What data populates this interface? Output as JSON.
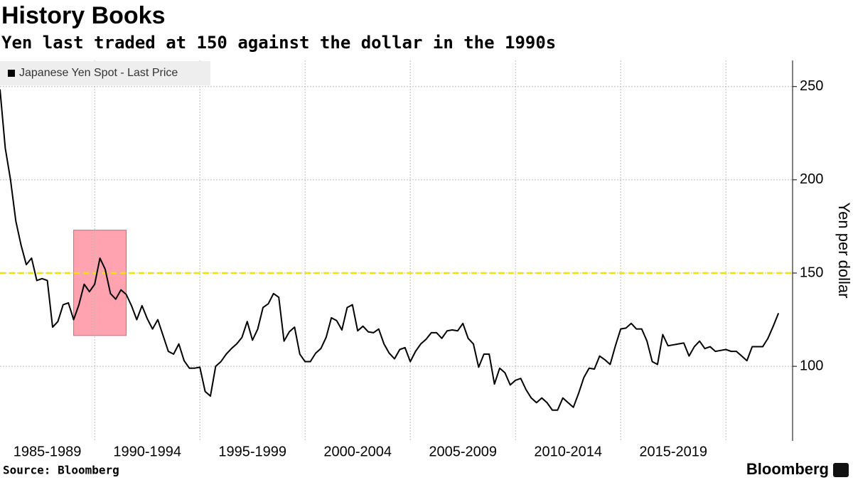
{
  "chart_data": {
    "type": "line",
    "title": "History Books",
    "subtitle": "Yen last traded at 150 against the dollar in the 1990s",
    "y_label": "Yen per dollar",
    "source": "Source: Bloomberg",
    "brand": "Bloomberg",
    "x": [
      1985.5,
      1985.75,
      1986,
      1986.25,
      1986.5,
      1986.75,
      1987,
      1987.25,
      1987.5,
      1987.75,
      1988,
      1988.25,
      1988.5,
      1988.75,
      1989,
      1989.25,
      1989.5,
      1989.75,
      1990,
      1990.25,
      1990.5,
      1990.75,
      1991,
      1991.25,
      1991.5,
      1991.75,
      1992,
      1992.25,
      1992.5,
      1992.75,
      1993,
      1993.25,
      1993.5,
      1993.75,
      1994,
      1994.25,
      1994.5,
      1994.75,
      1995,
      1995.25,
      1995.5,
      1995.75,
      1996,
      1996.25,
      1996.5,
      1996.75,
      1997,
      1997.25,
      1997.5,
      1997.75,
      1998,
      1998.25,
      1998.5,
      1998.75,
      1999,
      1999.25,
      1999.5,
      1999.75,
      2000,
      2000.25,
      2000.5,
      2000.75,
      2001,
      2001.25,
      2001.5,
      2001.75,
      2002,
      2002.25,
      2002.5,
      2002.75,
      2003,
      2003.25,
      2003.5,
      2003.75,
      2004,
      2004.25,
      2004.5,
      2004.75,
      2005,
      2005.25,
      2005.5,
      2005.75,
      2006,
      2006.25,
      2006.5,
      2006.75,
      2007,
      2007.25,
      2007.5,
      2007.75,
      2008,
      2008.25,
      2008.5,
      2008.75,
      2009,
      2009.25,
      2009.5,
      2009.75,
      2010,
      2010.25,
      2010.5,
      2010.75,
      2011,
      2011.25,
      2011.5,
      2011.75,
      2012,
      2012.25,
      2012.5,
      2012.75,
      2013,
      2013.25,
      2013.5,
      2013.75,
      2014,
      2014.25,
      2014.5,
      2014.75,
      2015,
      2015.25,
      2015.5,
      2015.75,
      2016,
      2016.25,
      2016.5,
      2016.75,
      2017,
      2017.25,
      2017.5,
      2017.75,
      2018,
      2018.25,
      2018.5,
      2018.75,
      2019,
      2019.25,
      2019.5,
      2019.75,
      2020,
      2020.25,
      2020.5,
      2020.75,
      2021,
      2021.25,
      2021.5,
      2021.75,
      2022,
      2022.25,
      2022.5
    ],
    "series": [
      {
        "name": "Japanese Yen Spot - Last Price",
        "color": "#000000",
        "values": [
          248.5,
          217,
          200,
          178,
          165,
          154.5,
          158,
          146,
          147,
          146,
          121,
          124,
          133,
          134,
          125,
          133,
          144,
          140,
          144,
          158,
          152,
          139,
          136,
          141,
          138.5,
          132.5,
          125,
          132.5,
          125.5,
          120,
          125,
          116.5,
          108,
          106.5,
          112,
          103,
          99,
          99,
          99.5,
          86.5,
          84,
          100,
          102.5,
          106.5,
          109.5,
          112,
          115.5,
          124,
          114,
          120,
          131.5,
          133.5,
          139,
          137,
          113.5,
          118.5,
          121,
          106.5,
          102.5,
          102.5,
          107,
          109.5,
          115.5,
          126,
          124.5,
          119.5,
          131.5,
          133,
          119,
          121.5,
          118.5,
          118,
          120,
          112,
          107,
          104,
          109,
          110,
          102.5,
          108,
          112,
          114.5,
          118,
          118,
          115,
          119,
          119.5,
          119,
          123,
          115,
          112,
          99.5,
          106.5,
          106.5,
          90.5,
          99,
          96.5,
          90,
          92.5,
          93.5,
          87.5,
          83,
          80.5,
          83,
          80.5,
          76.5,
          76.5,
          83,
          80.5,
          78,
          85.5,
          94,
          99,
          98.5,
          105.5,
          103.5,
          101,
          111,
          120,
          120.5,
          123,
          120,
          120,
          113.5,
          102.5,
          101,
          117,
          111,
          111.5,
          112,
          112.5,
          105.5,
          110.5,
          113.5,
          109.5,
          110.5,
          108,
          108.5,
          109,
          108,
          108,
          105.5,
          103,
          110.5,
          110.5,
          110.5,
          115,
          121.5,
          128.5
        ]
      }
    ],
    "xlim": [
      1985.5,
      2023.17
    ],
    "ylim": [
      60,
      264
    ],
    "yticks": [
      100,
      150,
      200,
      250
    ],
    "xticks": [
      {
        "value": 1985,
        "label": "1985-1989"
      },
      {
        "value": 1990,
        "label": "1990-1994"
      },
      {
        "value": 1995,
        "label": "1995-1999"
      },
      {
        "value": 2000,
        "label": "2000-2004"
      },
      {
        "value": 2005,
        "label": "2005-2009"
      },
      {
        "value": 2010,
        "label": "2010-2014"
      },
      {
        "value": 2015,
        "label": "2015-2019"
      }
    ],
    "xgrid": [
      1990,
      1995,
      2000,
      2005,
      2010,
      2015,
      2020
    ],
    "grid": true,
    "reference_line": {
      "value": 150,
      "color": "#f5e100"
    },
    "highlight": {
      "x": [
        1989,
        1991.5
      ],
      "y": [
        116.5,
        173
      ],
      "color": "#ffa3b1"
    },
    "legend": "top-left"
  }
}
